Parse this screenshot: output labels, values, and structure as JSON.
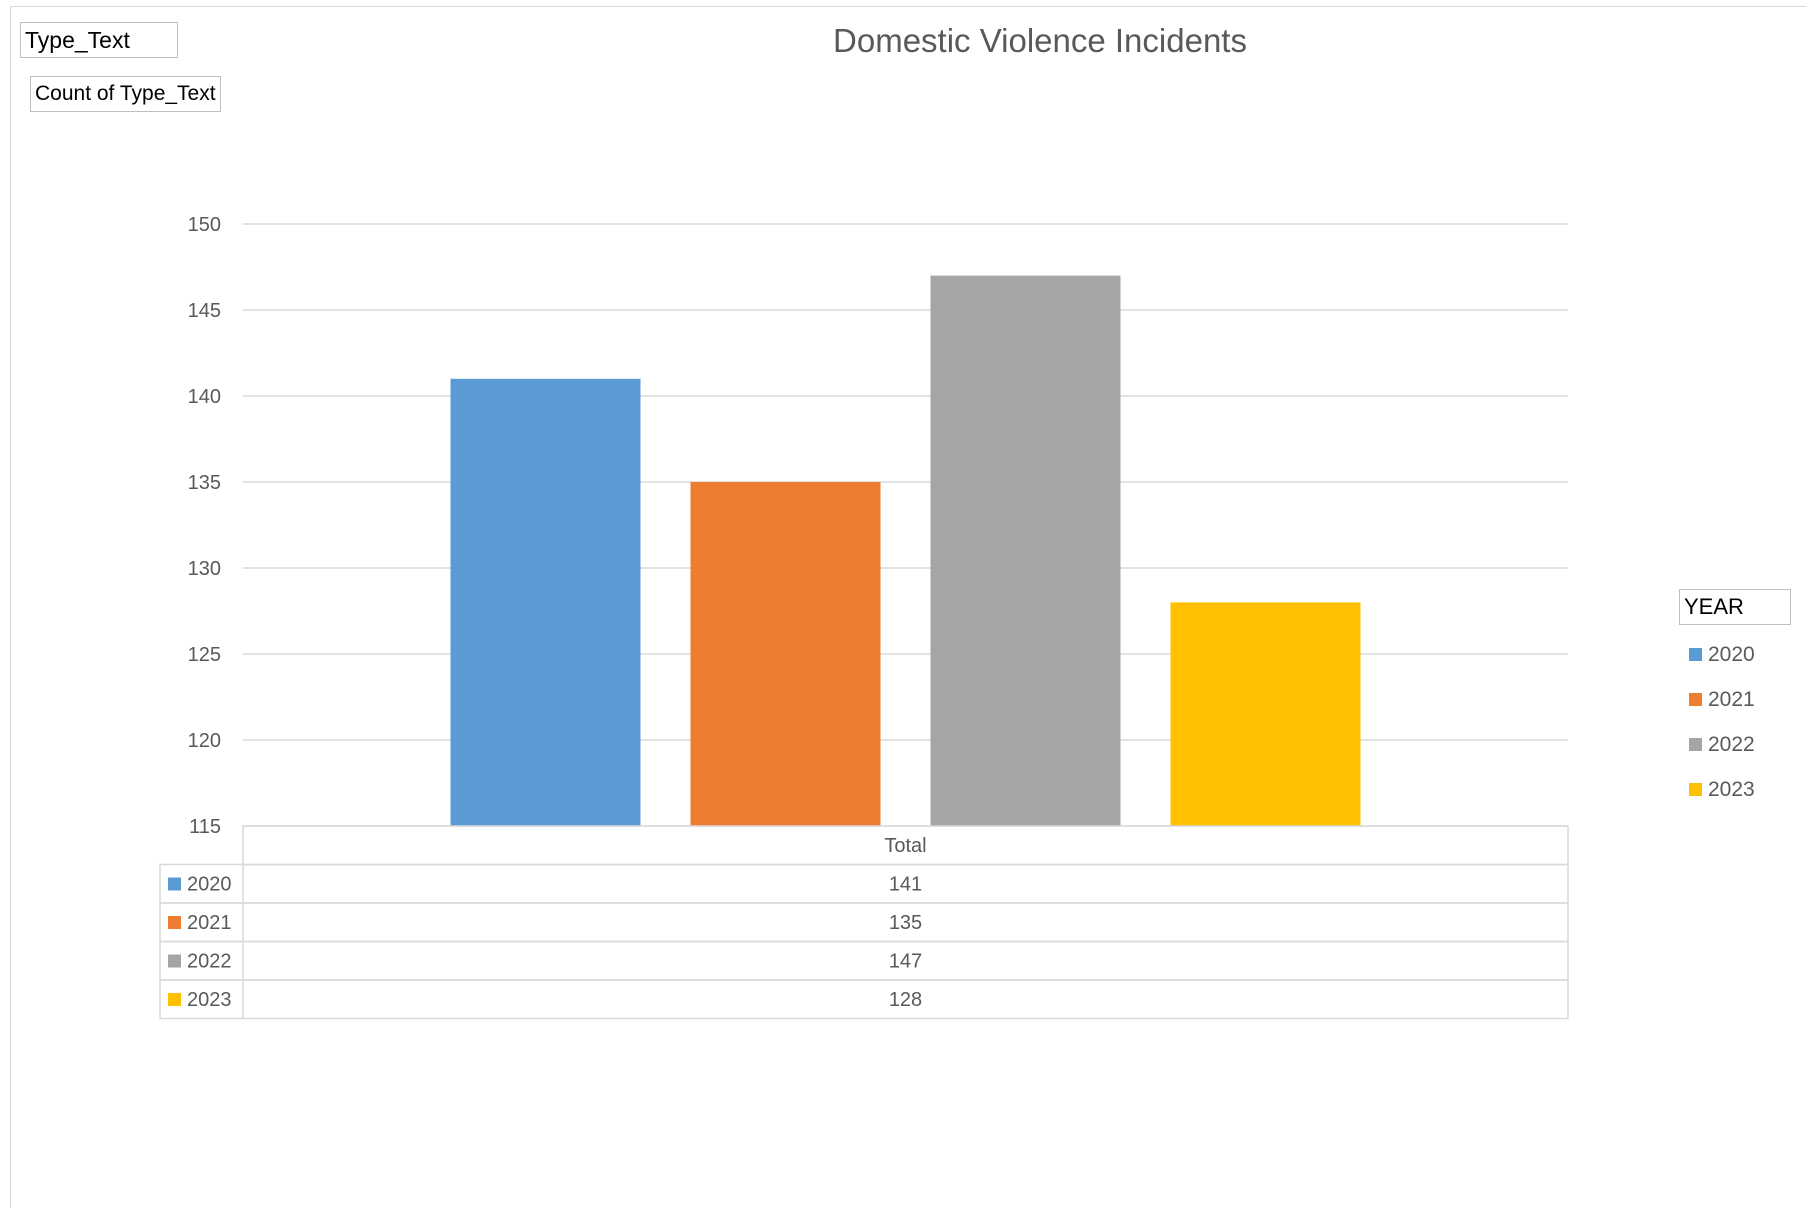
{
  "pivot_buttons": {
    "filter_field": "Type_Text",
    "values_field": "Count of Type_Text",
    "legend_field": "YEAR"
  },
  "colors": {
    "gridline": "#d9d9d9",
    "axis_text": "#595959",
    "table_border": "#d9d9d9"
  },
  "chart_data": {
    "type": "bar",
    "title": "Domestic Violence Incidents",
    "categories": [
      "Total"
    ],
    "series": [
      {
        "name": "2020",
        "values": [
          141
        ],
        "color": "#5b9bd5"
      },
      {
        "name": "2021",
        "values": [
          135
        ],
        "color": "#ed7d31"
      },
      {
        "name": "2022",
        "values": [
          147
        ],
        "color": "#a5a5a5"
      },
      {
        "name": "2023",
        "values": [
          128
        ],
        "color": "#ffc000"
      }
    ],
    "ylim": [
      115,
      150
    ],
    "yticks": [
      115,
      120,
      125,
      130,
      135,
      140,
      145,
      150
    ],
    "grid": true,
    "legend_title": "YEAR",
    "legend_position": "right",
    "data_table": true
  }
}
